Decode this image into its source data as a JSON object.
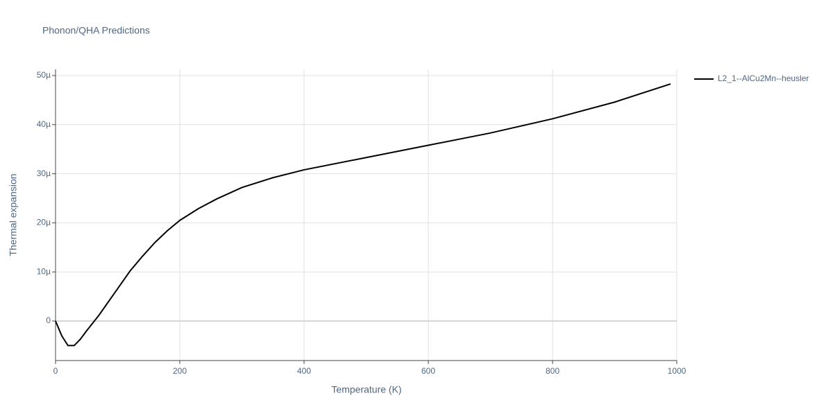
{
  "chart_data": {
    "type": "line",
    "title": "Phonon/QHA Predictions",
    "x_label": "Temperature (K)",
    "y_label": "Thermal expansion",
    "x": [
      0,
      10,
      20,
      30,
      40,
      50,
      60,
      70,
      80,
      100,
      120,
      140,
      160,
      180,
      200,
      230,
      260,
      300,
      350,
      400,
      500,
      600,
      700,
      800,
      900,
      990
    ],
    "series": [
      {
        "name": "L2_1--AlCu2Mn--heusler",
        "color": "#000000",
        "values": [
          0,
          -3e-06,
          -5e-06,
          -5e-06,
          -3.7e-06,
          -2e-06,
          -4e-07,
          1.2e-06,
          3e-06,
          6.6e-06,
          1.02e-05,
          1.32e-05,
          1.6e-05,
          1.84e-05,
          2.05e-05,
          2.29e-05,
          2.49e-05,
          2.72e-05,
          2.92e-05,
          3.08e-05,
          3.33e-05,
          3.58e-05,
          3.83e-05,
          4.12e-05,
          4.46e-05,
          4.83e-05
        ]
      }
    ],
    "xlim": [
      0,
      1000
    ],
    "xticks": [
      0,
      200,
      400,
      600,
      800,
      1000
    ],
    "ylim": [
      -8.05e-06,
      5.127e-05
    ],
    "yticks": [
      0,
      {
        "value": 1e-05,
        "label": "10µ"
      },
      {
        "value": 2e-05,
        "label": "20µ"
      },
      {
        "value": 3e-05,
        "label": "30µ"
      },
      {
        "value": 4e-05,
        "label": "40µ"
      },
      {
        "value": 5e-05,
        "label": "50µ"
      }
    ],
    "grid": true,
    "legend": "right"
  }
}
